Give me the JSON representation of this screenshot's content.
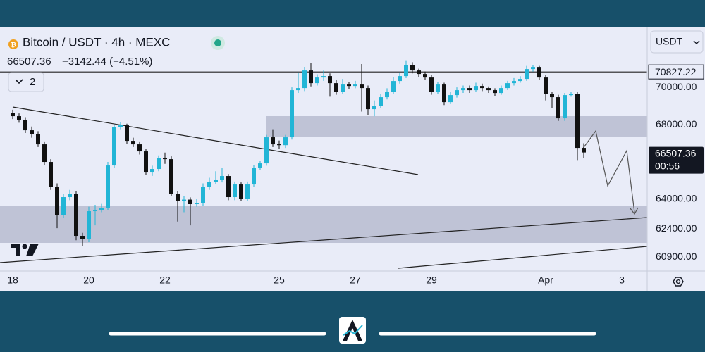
{
  "chart_data": {
    "type": "candlestick",
    "title": "Bitcoin / USDT · 4h · MEXC",
    "change_label": "−3142.44 (−4.51%)",
    "indicator_count": "2",
    "currency": "USDT",
    "countdown": "00:56",
    "resistance": 70827.22,
    "up_color": "#22b5d6",
    "down_color": "#111111",
    "grid": false,
    "xlim": [
      -2,
      100
    ],
    "xticks": [
      {
        "value": 0,
        "label": "18"
      },
      {
        "value": 12,
        "label": "20"
      },
      {
        "value": 24,
        "label": "22"
      },
      {
        "value": 42,
        "label": "25"
      },
      {
        "value": 54,
        "label": "27"
      },
      {
        "value": 66,
        "label": "29"
      },
      {
        "value": 84,
        "label": "Apr"
      },
      {
        "value": 96,
        "label": "3"
      }
    ],
    "ylim": [
      60150,
      73250
    ],
    "yticks": [
      {
        "value": 60900,
        "label": "60900.00"
      },
      {
        "value": 62400,
        "label": "62400.00"
      },
      {
        "value": 64000,
        "label": "64000.00"
      },
      {
        "value": 68000,
        "label": "68000.00"
      },
      {
        "value": 70000,
        "label": "70000.00"
      }
    ],
    "open": [
      68641,
      68453,
      68264,
      67698,
      67509,
      66943,
      66000,
      64679,
      63170,
      64113,
      64302,
      62037,
      61849,
      63358,
      63434,
      63547,
      65811,
      67887,
      67962,
      67132,
      66943,
      66566,
      65434,
      65623,
      66189,
      66150,
      64302,
      63924,
      63980,
      63736,
      63800,
      64679,
      64943,
      65057,
      65245,
      64113,
      64792,
      64037,
      64792,
      65698,
      65924,
      67321,
      66943,
      66900,
      67321,
      69849,
      69962,
      70906,
      70226,
      70528,
      70604,
      70226,
      69774,
      70151,
      70075,
      70151,
      69962,
      68830,
      69019,
      69472,
      69774,
      70340,
      70604,
      71208,
      70906,
      70717,
      70528,
      69774,
      70151,
      69207,
      69585,
      69849,
      69962,
      69849,
      70075,
      69962,
      69849,
      69698,
      69962,
      70226,
      70340,
      70453,
      70981,
      71094,
      70528,
      69660,
      69472,
      68340,
      69585,
      69660,
      66754
    ],
    "high": [
      68800,
      68600,
      68400,
      67900,
      67650,
      67100,
      66150,
      64850,
      64300,
      64500,
      64450,
      62200,
      63600,
      63700,
      63750,
      66000,
      68000,
      68150,
      68050,
      67300,
      67100,
      66700,
      65800,
      66350,
      66500,
      66300,
      64450,
      64150,
      64100,
      64000,
      64850,
      65150,
      65500,
      65700,
      65350,
      64950,
      64900,
      64950,
      65850,
      66050,
      67450,
      67750,
      67150,
      67450,
      70000,
      70800,
      71100,
      71300,
      70700,
      70900,
      70750,
      70400,
      70450,
      70300,
      70350,
      71250,
      70100,
      69300,
      69650,
      69950,
      70550,
      70800,
      71450,
      71350,
      71000,
      70850,
      70650,
      70300,
      70250,
      69750,
      70000,
      70100,
      70100,
      70250,
      70200,
      70050,
      69950,
      70100,
      70350,
      70500,
      70600,
      71150,
      71200,
      71150,
      70650,
      69750,
      69600,
      69700,
      69750,
      69750,
      67000
    ],
    "low": [
      68300,
      68100,
      67550,
      67300,
      66800,
      65850,
      64500,
      62450,
      63000,
      63950,
      61800,
      61500,
      61700,
      62600,
      63300,
      63400,
      65700,
      67750,
      66950,
      66800,
      66400,
      65300,
      65250,
      65500,
      65900,
      64150,
      62800,
      63300,
      62600,
      63600,
      63650,
      64500,
      64800,
      64900,
      63950,
      63950,
      63900,
      63900,
      64650,
      65550,
      65800,
      66800,
      66700,
      66750,
      67200,
      69700,
      69800,
      70050,
      70100,
      70350,
      69500,
      69600,
      69650,
      69900,
      69950,
      68700,
      68500,
      68450,
      68900,
      69350,
      69650,
      70200,
      70500,
      70750,
      70550,
      70400,
      69600,
      69650,
      69050,
      69100,
      69450,
      69700,
      69700,
      69750,
      69800,
      69700,
      69550,
      69600,
      69850,
      70100,
      70250,
      70350,
      70850,
      70400,
      69300,
      68900,
      68200,
      68200,
      69500,
      66100,
      66200
    ],
    "close": [
      68453,
      68264,
      67698,
      67509,
      66943,
      66000,
      64679,
      63170,
      64113,
      64302,
      62037,
      61849,
      63358,
      63434,
      63547,
      65811,
      67887,
      67962,
      67132,
      66943,
      66566,
      65434,
      65623,
      66189,
      66150,
      64302,
      63924,
      63980,
      63736,
      63800,
      64679,
      64943,
      65057,
      65245,
      64113,
      64792,
      64037,
      64792,
      65698,
      65924,
      67321,
      66943,
      66900,
      67321,
      69849,
      69962,
      70906,
      70226,
      70528,
      70604,
      70226,
      69774,
      70151,
      70075,
      70151,
      69962,
      68830,
      69019,
      69472,
      69774,
      70340,
      70604,
      71208,
      70906,
      70717,
      70528,
      69774,
      70151,
      69207,
      69585,
      69849,
      69962,
      69849,
      70075,
      69962,
      69849,
      69698,
      69962,
      70226,
      70340,
      70453,
      70981,
      71094,
      70528,
      69660,
      69472,
      68340,
      69585,
      69660,
      66754,
      66507.36
    ]
  }
}
